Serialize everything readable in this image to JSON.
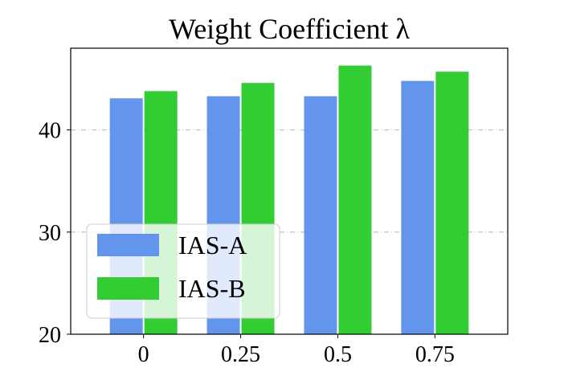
{
  "chart_data": {
    "type": "bar",
    "title": "Weight Coefficient λ",
    "categories": [
      "0",
      "0.25",
      "0.5",
      "0.75"
    ],
    "series": [
      {
        "name": "IAS-A",
        "color": "#6495ED",
        "values": [
          43.1,
          43.3,
          43.3,
          44.8
        ]
      },
      {
        "name": "IAS-B",
        "color": "#32CD32",
        "values": [
          43.8,
          44.6,
          46.3,
          45.7
        ]
      }
    ],
    "xlabel": "",
    "ylabel": "",
    "ylim": [
      20,
      48
    ],
    "yticks": [
      "20",
      "30",
      "40"
    ],
    "grid": "horizontal dashed",
    "legend_position": "lower-left"
  }
}
